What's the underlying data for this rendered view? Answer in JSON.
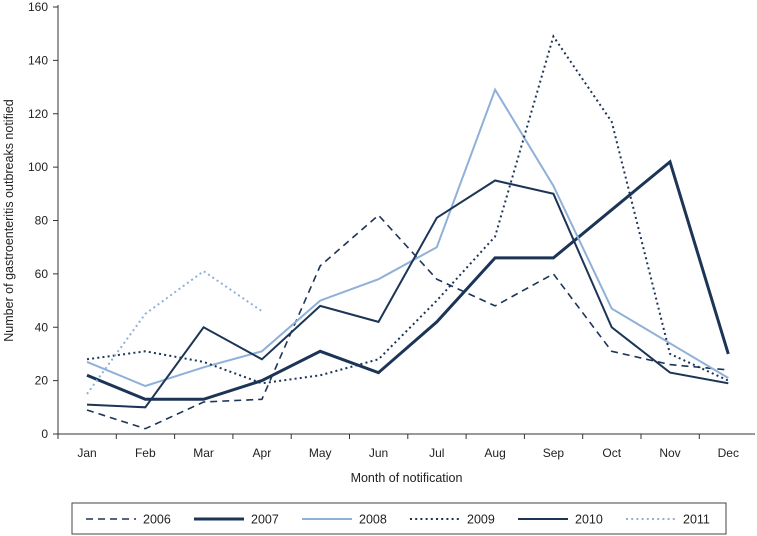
{
  "chart_data": {
    "type": "line",
    "title": "",
    "xlabel": "Month of notification",
    "ylabel": "Number of gastroenteritis outbreaks notified",
    "categories": [
      "Jan",
      "Feb",
      "Mar",
      "Apr",
      "May",
      "Jun",
      "Jul",
      "Aug",
      "Sep",
      "Oct",
      "Nov",
      "Dec"
    ],
    "ylim": [
      0,
      160
    ],
    "yticks": [
      0,
      20,
      40,
      60,
      80,
      100,
      120,
      140,
      160
    ],
    "grid": false,
    "legend_position": "bottom",
    "series": [
      {
        "name": "2006",
        "style": "dashed",
        "color": "#1c3557",
        "values": [
          9,
          2,
          12,
          13,
          63,
          82,
          58,
          48,
          60,
          31,
          26,
          24
        ]
      },
      {
        "name": "2007",
        "style": "solid-thick",
        "color": "#1c3557",
        "values": [
          22,
          13,
          13,
          20,
          31,
          23,
          42,
          66,
          66,
          84,
          102,
          30
        ]
      },
      {
        "name": "2008",
        "style": "solid",
        "color": "#8fb0d8",
        "values": [
          27,
          18,
          25,
          31,
          50,
          58,
          70,
          129,
          93,
          47,
          34,
          21
        ]
      },
      {
        "name": "2009",
        "style": "dotted",
        "color": "#1c3557",
        "values": [
          28,
          31,
          27,
          19,
          22,
          28,
          50,
          74,
          149,
          117,
          30,
          20
        ]
      },
      {
        "name": "2010",
        "style": "solid",
        "color": "#1c3557",
        "values": [
          11,
          10,
          40,
          28,
          48,
          42,
          81,
          95,
          90,
          40,
          23,
          19
        ]
      },
      {
        "name": "2011",
        "style": "dotted",
        "color": "#8fb0d8",
        "values": [
          15,
          45,
          61,
          46,
          null,
          null,
          null,
          null,
          null,
          null,
          null,
          null
        ]
      }
    ]
  }
}
